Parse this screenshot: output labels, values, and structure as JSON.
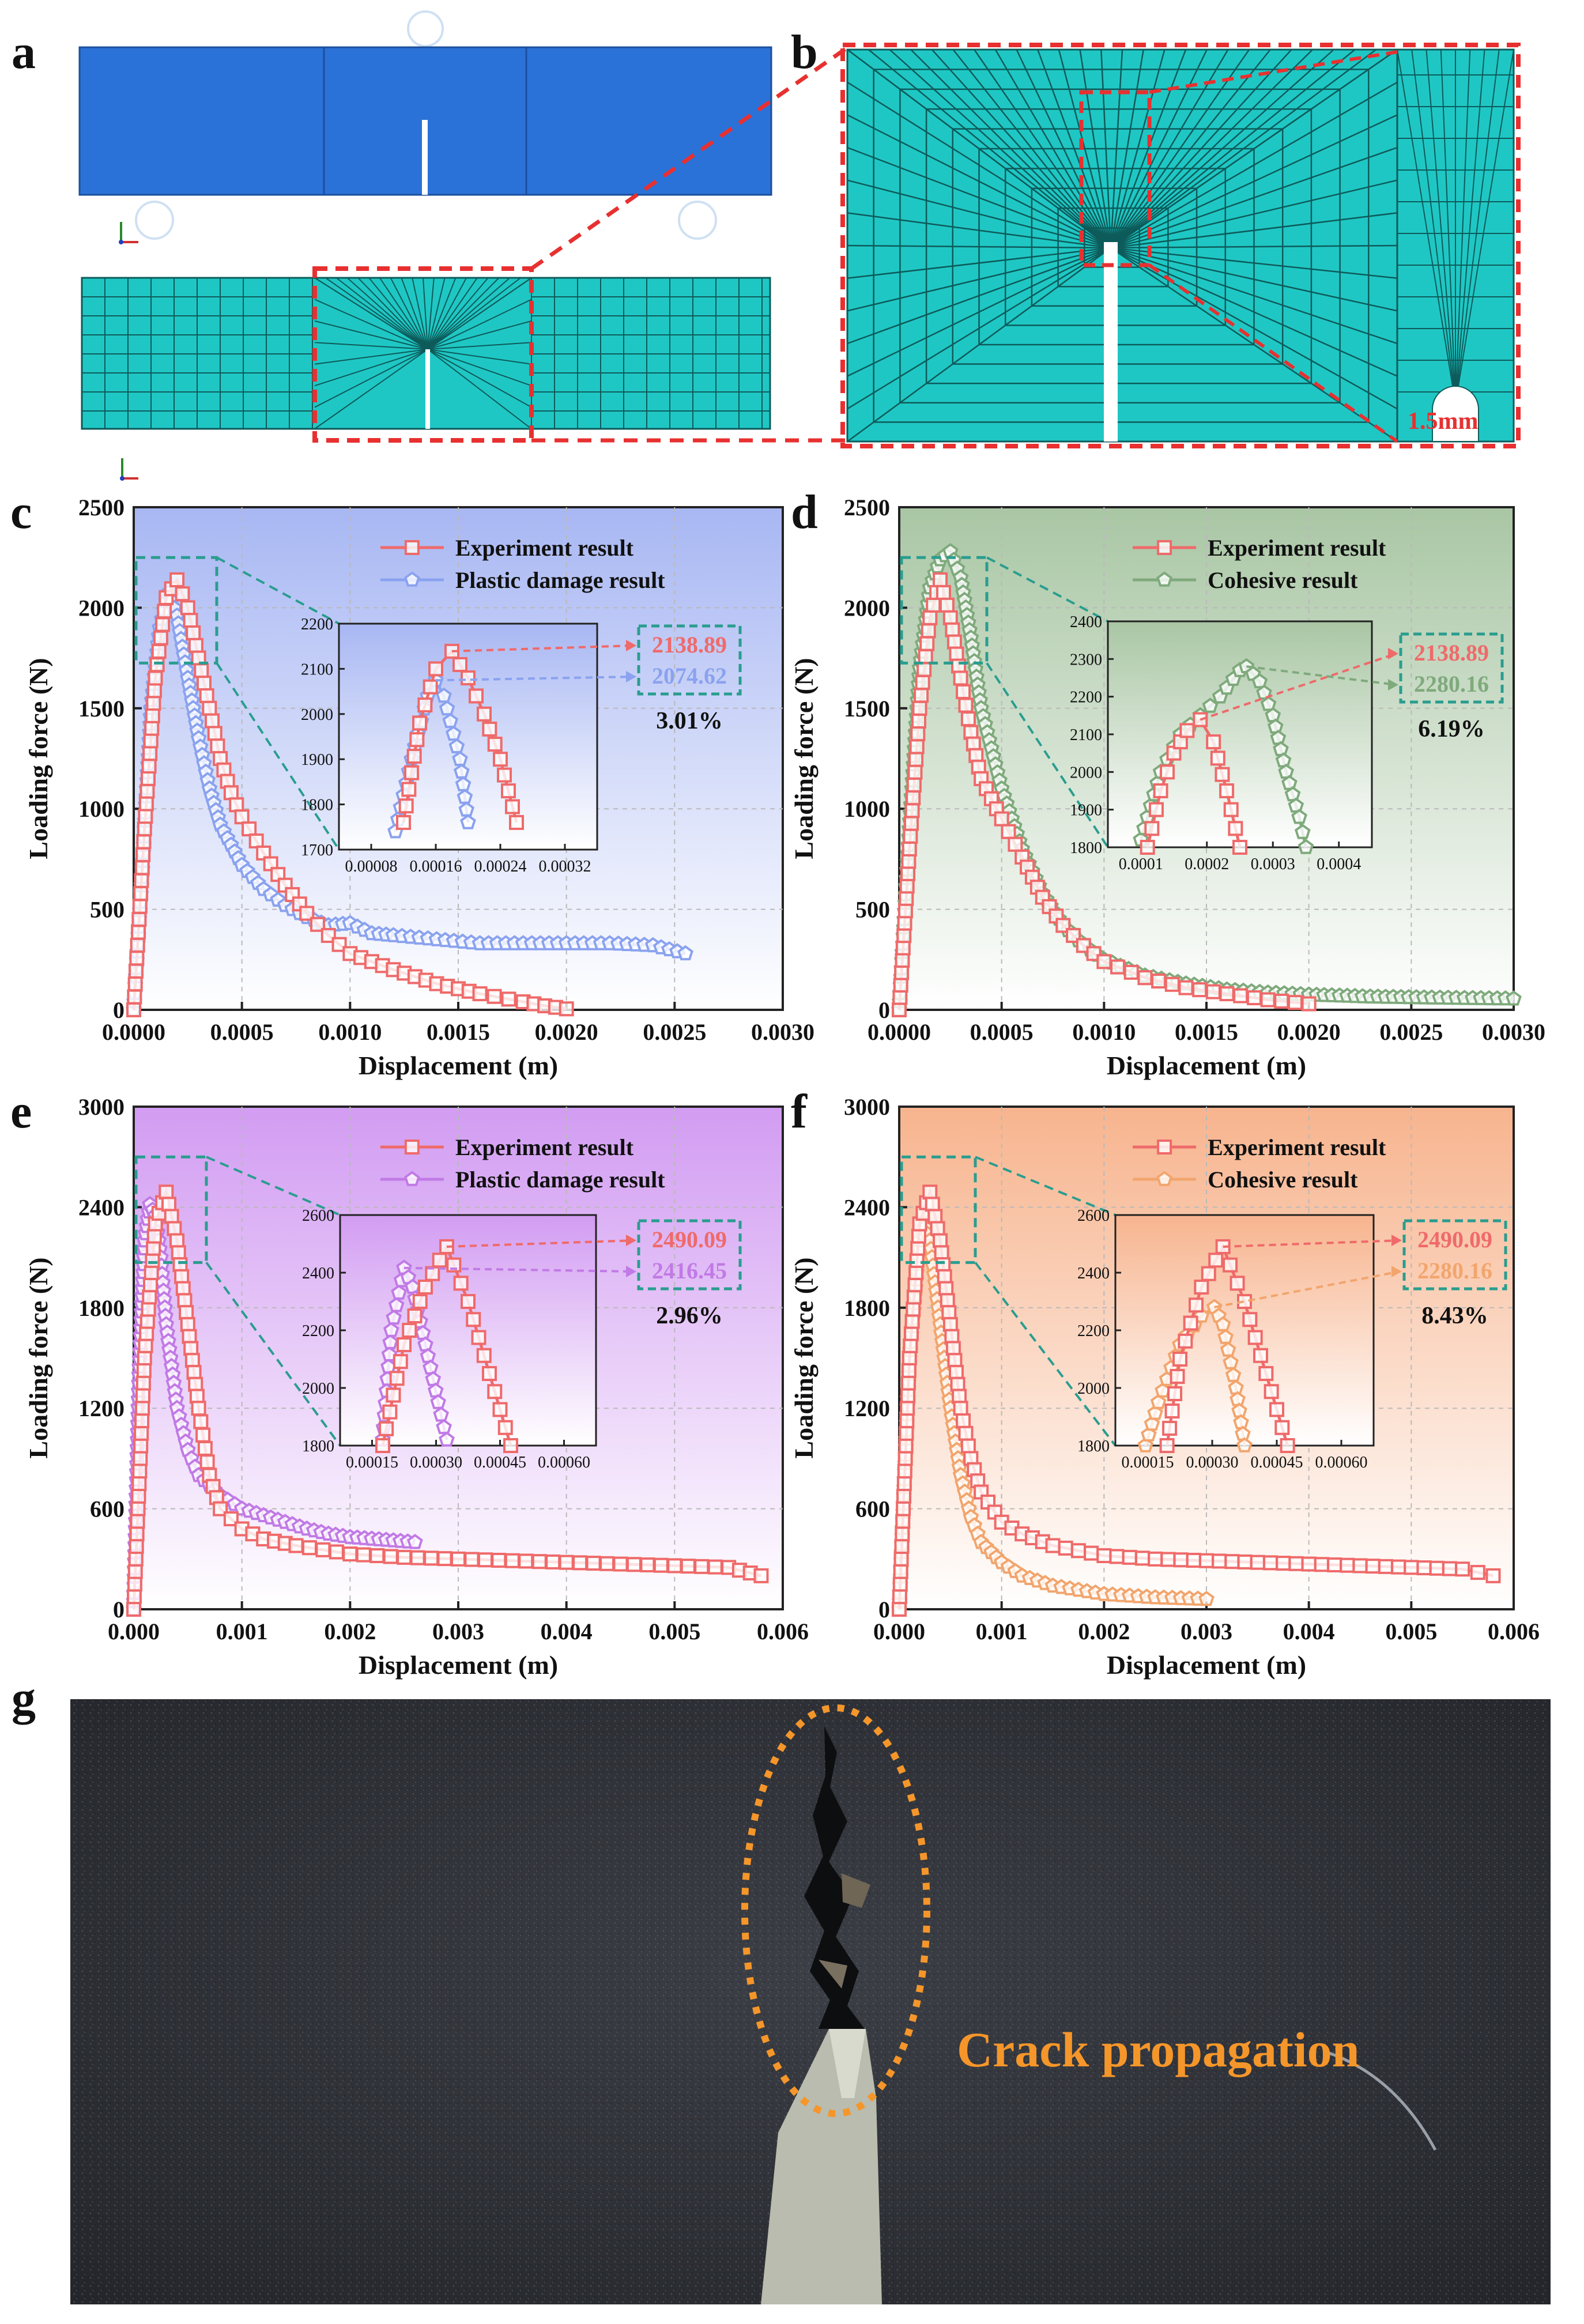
{
  "panels": {
    "a": "a",
    "b": "b",
    "c": "c",
    "d": "d",
    "e": "e",
    "f": "f",
    "g": "g"
  },
  "mesh_annotation": "1.5mm",
  "photo_caption": "Crack propagation",
  "colors": {
    "experiment": "#ef6a6a",
    "plastic_c": "#8aa2ef",
    "cohesive_d": "#7faa7c",
    "plastic_e": "#c17ae6",
    "cohesive_f": "#f2a56d",
    "dash_teal": "#2a9d8f",
    "mesh_teal": "#1fc7c4",
    "beam_blue": "#2a6fd6",
    "mesh_red": "#e83030",
    "crack_orange": "#f5962a"
  },
  "chart_data": [
    {
      "id": "c",
      "type": "line",
      "xlabel": "Displacement (m)",
      "ylabel": "Loading force (N)",
      "xlim": [
        0,
        0.003
      ],
      "ylim": [
        0,
        2500
      ],
      "xticks": [
        "0.0000",
        "0.0005",
        "0.0010",
        "0.0015",
        "0.0020",
        "0.0025",
        "0.0030"
      ],
      "yticks": [
        "0",
        "500",
        "1000",
        "1500",
        "2000",
        "2500"
      ],
      "legend": [
        "Experiment result",
        "Plastic damage result"
      ],
      "series": [
        {
          "name": "Experiment result",
          "x": [
            0,
            5e-05,
            0.0001,
            0.00015,
            0.0002,
            0.00025,
            0.0003,
            0.00035,
            0.0004,
            0.00045,
            0.0005,
            0.0006,
            0.0007,
            0.0008,
            0.0009,
            0.001,
            0.0012,
            0.0014,
            0.0016,
            0.0018,
            0.0019,
            0.002
          ],
          "y": [
            0,
            900,
            1650,
            2050,
            2138.89,
            2000,
            1750,
            1500,
            1250,
            1080,
            960,
            780,
            620,
            480,
            370,
            280,
            200,
            130,
            80,
            40,
            20,
            5
          ]
        },
        {
          "name": "Plastic damage result",
          "x": [
            0,
            4e-05,
            8e-05,
            0.00012,
            0.00016,
            0.0002,
            0.00025,
            0.0003,
            0.00035,
            0.0004,
            0.0005,
            0.0006,
            0.0007,
            0.0008,
            0.0009,
            0.001,
            0.0011,
            0.0012,
            0.0014,
            0.0016,
            0.0018,
            0.002,
            0.0022,
            0.0024,
            0.00255
          ],
          "y": [
            0,
            700,
            1500,
            1900,
            2074.62,
            1960,
            1650,
            1350,
            1100,
            920,
            720,
            600,
            520,
            460,
            420,
            430,
            380,
            370,
            350,
            330,
            330,
            330,
            330,
            320,
            280
          ]
        }
      ],
      "inset": {
        "xlim": [
          4e-05,
          0.00036
        ],
        "ylim": [
          1700,
          2200
        ],
        "xticks": [
          "0.00008",
          "0.00016",
          "0.00024",
          "0.00032"
        ],
        "yticks": [
          "1700",
          "1800",
          "1900",
          "2000",
          "2100",
          "2200"
        ],
        "series": [
          {
            "x": [
              0.00012,
              0.00014,
              0.00016,
              0.00018,
              0.0002,
              0.00022,
              0.00024,
              0.00026
            ],
            "y": [
              1760,
              1980,
              2100,
              2138.89,
              2080,
              2000,
              1900,
              1760
            ]
          },
          {
            "x": [
              0.00011,
              0.00013,
              0.00015,
              0.00016,
              0.00017,
              0.00019,
              0.0002
            ],
            "y": [
              1740,
              1900,
              2040,
              2074.62,
              2040,
              1900,
              1760
            ]
          }
        ],
        "peaks": [
          2138.89,
          2074.62
        ],
        "peak_labels": [
          "2138.89",
          "2074.62"
        ],
        "error": "3.01%"
      }
    },
    {
      "id": "d",
      "type": "line",
      "xlabel": "Displacement (m)",
      "ylabel": "Loading force (N)",
      "xlim": [
        0,
        0.003
      ],
      "ylim": [
        0,
        2500
      ],
      "xticks": [
        "0.0000",
        "0.0005",
        "0.0010",
        "0.0015",
        "0.0020",
        "0.0025",
        "0.0030"
      ],
      "yticks": [
        "0",
        "500",
        "1000",
        "1500",
        "2000",
        "2500"
      ],
      "legend": [
        "Experiment result",
        "Cohesive result"
      ],
      "series": [
        {
          "name": "Experiment result",
          "x": [
            0,
            5e-05,
            0.0001,
            0.00015,
            0.0002,
            0.00025,
            0.0003,
            0.00035,
            0.0004,
            0.0005,
            0.0006,
            0.0007,
            0.0008,
            0.0009,
            0.001,
            0.0012,
            0.0014,
            0.0016,
            0.0018,
            0.002
          ],
          "y": [
            0,
            800,
            1500,
            1950,
            2138.89,
            1950,
            1650,
            1380,
            1150,
            950,
            760,
            560,
            420,
            320,
            240,
            160,
            110,
            80,
            50,
            30
          ]
        },
        {
          "name": "Cohesive result",
          "x": [
            0,
            5e-05,
            0.0001,
            0.00015,
            0.0002,
            0.00025,
            0.0003,
            0.00035,
            0.0004,
            0.0005,
            0.0006,
            0.0007,
            0.0008,
            0.0009,
            0.001,
            0.0012,
            0.0014,
            0.0016,
            0.0018,
            0.002,
            0.0023,
            0.0026,
            0.003
          ],
          "y": [
            0,
            900,
            1700,
            2100,
            2240,
            2280.16,
            2150,
            1850,
            1500,
            1100,
            800,
            580,
            420,
            320,
            250,
            170,
            130,
            100,
            85,
            75,
            65,
            60,
            55
          ]
        }
      ],
      "inset": {
        "xlim": [
          5e-05,
          0.00045
        ],
        "ylim": [
          1800,
          2400
        ],
        "xticks": [
          "0.0001",
          "0.0002",
          "0.0003",
          "0.0004"
        ],
        "yticks": [
          "1800",
          "1900",
          "2000",
          "2100",
          "2200",
          "2300",
          "2400"
        ],
        "series": [
          {
            "x": [
              0.00011,
              0.00013,
              0.00015,
              0.00017,
              0.00019,
              0.00021,
              0.00023,
              0.00025
            ],
            "y": [
              1800,
              1950,
              2050,
              2110,
              2138.89,
              2080,
              1950,
              1800
            ]
          },
          {
            "x": [
              0.0001,
              0.00013,
              0.00016,
              0.00019,
              0.00022,
              0.00025,
              0.00026,
              0.00028,
              0.0003,
              0.00032,
              0.00034,
              0.00035
            ],
            "y": [
              1820,
              2000,
              2100,
              2150,
              2200,
              2270,
              2280.16,
              2240,
              2150,
              2000,
              1880,
              1800
            ]
          }
        ],
        "peaks": [
          2138.89,
          2280.16
        ],
        "peak_labels": [
          "2138.89",
          "2280.16"
        ],
        "error": "6.19%"
      }
    },
    {
      "id": "e",
      "type": "line",
      "xlabel": "Displacement (m)",
      "ylabel": "Loading force (N)",
      "xlim": [
        0,
        0.006
      ],
      "ylim": [
        0,
        3000
      ],
      "xticks": [
        "0.000",
        "0.001",
        "0.002",
        "0.003",
        "0.004",
        "0.005",
        "0.006"
      ],
      "yticks": [
        "0",
        "600",
        "1200",
        "1800",
        "2400",
        "3000"
      ],
      "legend": [
        "Experiment result",
        "Plastic damage result"
      ],
      "series": [
        {
          "name": "Experiment result",
          "x": [
            0,
            0.0001,
            0.0002,
            0.0003,
            0.0004,
            0.0005,
            0.0006,
            0.0007,
            0.0008,
            0.001,
            0.0012,
            0.0015,
            0.002,
            0.0025,
            0.003,
            0.0035,
            0.004,
            0.0045,
            0.005,
            0.0055,
            0.0058
          ],
          "y": [
            0,
            1500,
            2300,
            2490.09,
            2200,
            1700,
            1200,
            800,
            600,
            480,
            420,
            380,
            330,
            310,
            300,
            290,
            280,
            270,
            260,
            250,
            200
          ]
        },
        {
          "name": "Plastic damage result",
          "x": [
            0,
            5e-05,
            0.0001,
            0.00015,
            0.0002,
            0.00025,
            0.0003,
            0.0004,
            0.0005,
            0.0006,
            0.0008,
            0.001,
            0.0012,
            0.0014,
            0.0016,
            0.0018,
            0.002,
            0.0022,
            0.0024,
            0.0026
          ],
          "y": [
            0,
            1400,
            2200,
            2416.45,
            2350,
            2100,
            1700,
            1200,
            950,
            800,
            680,
            600,
            560,
            520,
            480,
            450,
            430,
            420,
            410,
            400
          ]
        }
      ],
      "inset": {
        "xlim": [
          5e-05,
          0.00065
        ],
        "ylim": [
          1800,
          2600
        ],
        "xticks": [
          "0.00015",
          "0.00030",
          "0.00045",
          "0.00060"
        ],
        "yticks": [
          "1800",
          "2000",
          "2200",
          "2400",
          "2600"
        ],
        "series": [
          {
            "x": [
              0.00015,
              0.0002,
              0.00025,
              0.0003,
              0.00035,
              0.0004,
              0.00045
            ],
            "y": [
              1800,
              2150,
              2350,
              2490.09,
              2300,
              2050,
              1800
            ]
          },
          {
            "x": [
              0.00015,
              0.00017,
              0.0002,
              0.00022,
              0.00025,
              0.00028,
              0.0003
            ],
            "y": [
              1820,
              2200,
              2416.45,
              2350,
              2150,
              1950,
              1820
            ]
          }
        ],
        "peaks": [
          2490.09,
          2416.45
        ],
        "peak_labels": [
          "2490.09",
          "2416.45"
        ],
        "error": "2.96%"
      }
    },
    {
      "id": "f",
      "type": "line",
      "xlabel": "Displacement (m)",
      "ylabel": "Loading force (N)",
      "xlim": [
        0,
        0.006
      ],
      "ylim": [
        0,
        3000
      ],
      "xticks": [
        "0.000",
        "0.001",
        "0.002",
        "0.003",
        "0.004",
        "0.005",
        "0.006"
      ],
      "yticks": [
        "0",
        "600",
        "1200",
        "1800",
        "2400",
        "3000"
      ],
      "legend": [
        "Experiment result",
        "Cohesive result"
      ],
      "series": [
        {
          "name": "Experiment result",
          "x": [
            0,
            0.0001,
            0.0002,
            0.0003,
            0.0004,
            0.0005,
            0.0006,
            0.0007,
            0.0008,
            0.001,
            0.0012,
            0.0015,
            0.002,
            0.0025,
            0.003,
            0.0035,
            0.004,
            0.0045,
            0.005,
            0.0055,
            0.0058
          ],
          "y": [
            0,
            1500,
            2300,
            2490.09,
            2200,
            1700,
            1200,
            900,
            700,
            520,
            450,
            380,
            320,
            300,
            290,
            280,
            270,
            260,
            250,
            240,
            200
          ]
        },
        {
          "name": "Cohesive result",
          "x": [
            0,
            0.0001,
            0.0002,
            0.00025,
            0.0003,
            0.0004,
            0.0005,
            0.0006,
            0.0007,
            0.0008,
            0.001,
            0.0012,
            0.0015,
            0.002,
            0.0025,
            0.003
          ],
          "y": [
            0,
            1500,
            2200,
            2280.16,
            2200,
            1700,
            1200,
            800,
            550,
            400,
            280,
            200,
            140,
            90,
            70,
            60
          ]
        }
      ],
      "inset": {
        "xlim": [
          5e-05,
          0.00065
        ],
        "ylim": [
          1800,
          2600
        ],
        "xticks": [
          "0.00015",
          "0.00030",
          "0.00045",
          "0.00060"
        ],
        "yticks": [
          "1800",
          "2000",
          "2200",
          "2400",
          "2600"
        ],
        "series": [
          {
            "x": [
              0.00017,
              0.0002,
              0.00025,
              0.0003,
              0.00035,
              0.0004,
              0.00045
            ],
            "y": [
              1800,
              2100,
              2350,
              2490.09,
              2300,
              2050,
              1800
            ]
          },
          {
            "x": [
              0.00012,
              0.00015,
              0.0002,
              0.00025,
              0.00028,
              0.0003,
              0.00033,
              0.00035
            ],
            "y": [
              1800,
              1950,
              2150,
              2250,
              2280.16,
              2220,
              2000,
              1800
            ]
          }
        ],
        "peaks": [
          2490.09,
          2280.16
        ],
        "peak_labels": [
          "2490.09",
          "2280.16"
        ],
        "error": "8.43%"
      }
    }
  ]
}
